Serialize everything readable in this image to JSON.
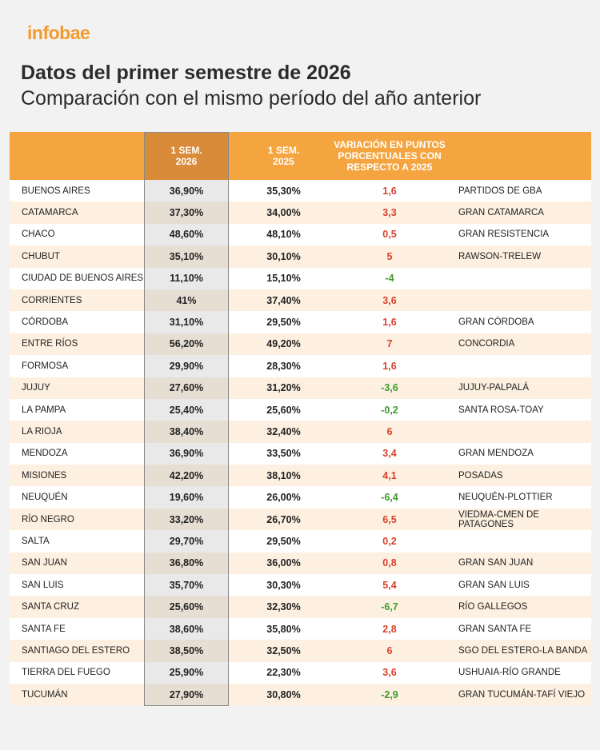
{
  "brand": "infobae",
  "title": "Datos del primer semestre de 2026",
  "subtitle": "Comparación con el mismo período del año anterior",
  "header": {
    "col_2026": "1 SEM.\n2026",
    "col_2025": "1 SEM.\n2025",
    "col_var": "VARIACIÓN EN PUNTOS\nPORCENTUALES CON\nRESPECTO A 2025"
  },
  "rows": [
    {
      "province": "BUENOS AIRES",
      "v2026": "36,90%",
      "v2025": "35,30%",
      "var": "1,6",
      "area": "PARTIDOS DE GBA"
    },
    {
      "province": "CATAMARCA",
      "v2026": "37,30%",
      "v2025": "34,00%",
      "var": "3,3",
      "area": "GRAN CATAMARCA"
    },
    {
      "province": "CHACO",
      "v2026": "48,60%",
      "v2025": "48,10%",
      "var": "0,5",
      "area": "GRAN RESISTENCIA"
    },
    {
      "province": "CHUBUT",
      "v2026": "35,10%",
      "v2025": "30,10%",
      "var": "5",
      "area": "RAWSON-TRELEW"
    },
    {
      "province": "CIUDAD DE BUENOS AIRES",
      "v2026": "11,10%",
      "v2025": "15,10%",
      "var": "-4",
      "area": ""
    },
    {
      "province": "CORRIENTES",
      "v2026": "41%",
      "v2025": "37,40%",
      "var": "3,6",
      "area": ""
    },
    {
      "province": "CÓRDOBA",
      "v2026": "31,10%",
      "v2025": "29,50%",
      "var": "1,6",
      "area": "GRAN CÓRDOBA"
    },
    {
      "province": "ENTRE RÍOS",
      "v2026": "56,20%",
      "v2025": "49,20%",
      "var": "7",
      "area": "CONCORDIA"
    },
    {
      "province": "FORMOSA",
      "v2026": "29,90%",
      "v2025": "28,30%",
      "var": "1,6",
      "area": ""
    },
    {
      "province": "JUJUY",
      "v2026": "27,60%",
      "v2025": "31,20%",
      "var": "-3,6",
      "area": "JUJUY-PALPALÁ"
    },
    {
      "province": "LA PAMPA",
      "v2026": "25,40%",
      "v2025": "25,60%",
      "var": "-0,2",
      "area": "SANTA ROSA-TOAY"
    },
    {
      "province": "LA RIOJA",
      "v2026": "38,40%",
      "v2025": "32,40%",
      "var": "6",
      "area": ""
    },
    {
      "province": "MENDOZA",
      "v2026": "36,90%",
      "v2025": "33,50%",
      "var": "3,4",
      "area": "GRAN MENDOZA"
    },
    {
      "province": "MISIONES",
      "v2026": "42,20%",
      "v2025": "38,10%",
      "var": "4,1",
      "area": "POSADAS"
    },
    {
      "province": "NEUQUÉN",
      "v2026": "19,60%",
      "v2025": "26,00%",
      "var": "-6,4",
      "area": "NEUQUÉN-PLOTTIER"
    },
    {
      "province": "RÍO NEGRO",
      "v2026": "33,20%",
      "v2025": "26,70%",
      "var": "6,5",
      "area": "VIEDMA-CMEN DE PATAGONES"
    },
    {
      "province": "SALTA",
      "v2026": "29,70%",
      "v2025": "29,50%",
      "var": "0,2",
      "area": ""
    },
    {
      "province": "SAN JUAN",
      "v2026": "36,80%",
      "v2025": "36,00%",
      "var": "0,8",
      "area": "GRAN SAN JUAN"
    },
    {
      "province": "SAN LUIS",
      "v2026": "35,70%",
      "v2025": "30,30%",
      "var": "5,4",
      "area": "GRAN SAN LUIS"
    },
    {
      "province": "SANTA CRUZ",
      "v2026": "25,60%",
      "v2025": "32,30%",
      "var": "-6,7",
      "area": "RÍO GALLEGOS"
    },
    {
      "province": "SANTA FE",
      "v2026": "38,60%",
      "v2025": "35,80%",
      "var": "2,8",
      "area": "GRAN SANTA FE"
    },
    {
      "province": "SANTIAGO DEL ESTERO",
      "v2026": "38,50%",
      "v2025": "32,50%",
      "var": "6",
      "area": "SGO DEL ESTERO-LA BANDA"
    },
    {
      "province": "TIERRA DEL FUEGO",
      "v2026": "25,90%",
      "v2025": "22,30%",
      "var": "3,6",
      "area": "USHUAIA-RÍO GRANDE"
    },
    {
      "province": "TUCUMÁN",
      "v2026": "27,90%",
      "v2025": "30,80%",
      "var": "-2,9",
      "area": "GRAN TUCUMÁN-TAFÍ VIEJO"
    }
  ],
  "colors": {
    "brand": "#f39a2c",
    "header_bg": "#f5a540",
    "positive": "#d9412b",
    "negative": "#3f9b2f"
  }
}
